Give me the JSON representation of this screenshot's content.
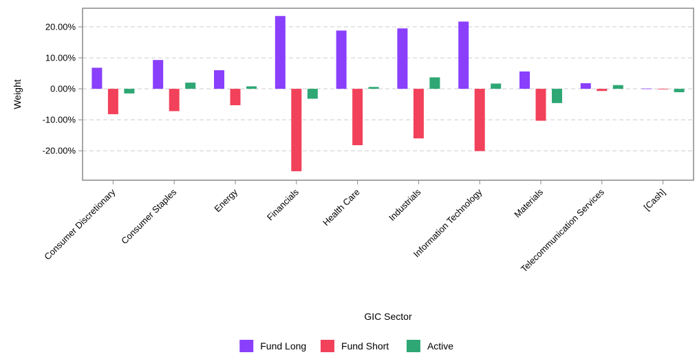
{
  "chart_data": {
    "type": "bar",
    "title": "",
    "xlabel": "GIC Sector",
    "ylabel": "Weight",
    "categories": [
      "Consumer Discretionary",
      "Consumer Staples",
      "Energy",
      "Financials",
      "Health Care",
      "Industrials",
      "Information Technology",
      "Materials",
      "Telecommunication Services",
      "[Cash]"
    ],
    "series": [
      {
        "name": "Fund Long",
        "color": "#8a3ffc",
        "values": [
          6.8,
          9.3,
          6.0,
          23.5,
          18.8,
          19.5,
          21.7,
          5.6,
          1.8,
          0.1
        ]
      },
      {
        "name": "Fund Short",
        "color": "#f2415a",
        "values": [
          -8.2,
          -7.2,
          -5.3,
          -26.6,
          -18.2,
          -16.0,
          -20.1,
          -10.3,
          -0.7,
          -0.2
        ]
      },
      {
        "name": "Active",
        "color": "#2ea774",
        "values": [
          -1.5,
          2.0,
          0.8,
          -3.2,
          0.6,
          3.7,
          1.7,
          -4.6,
          1.2,
          -1.1
        ]
      }
    ],
    "ylim": [
      -29.5,
      26.0
    ],
    "yticks": [
      20,
      10,
      0,
      -10,
      -20
    ],
    "ytick_labels": [
      "20.00%",
      "10.00%",
      "0.00%",
      "-10.00%",
      "-20.00%"
    ],
    "grid": true,
    "legend_position": "bottom"
  }
}
